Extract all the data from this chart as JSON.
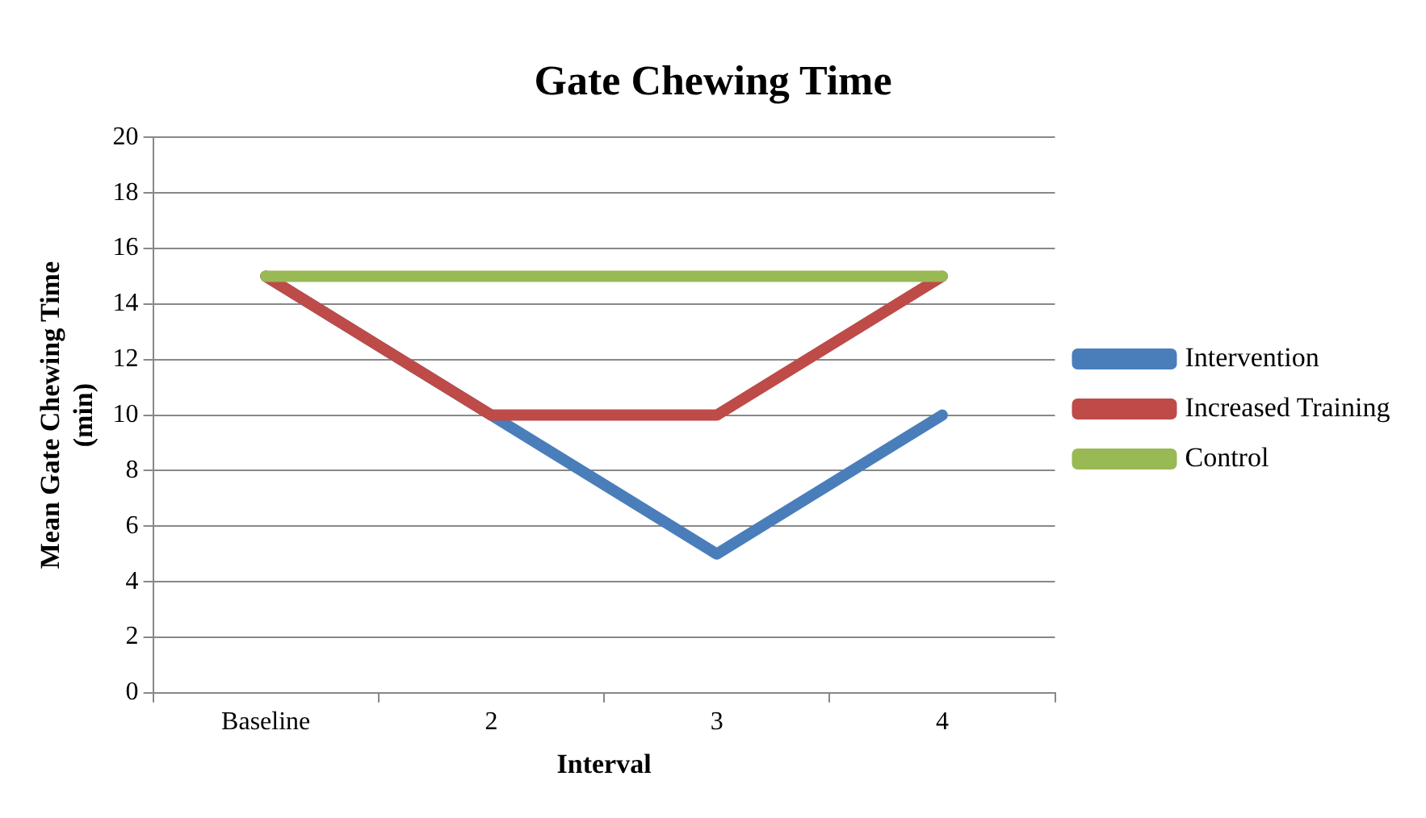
{
  "chart_data": {
    "type": "line",
    "title": "Gate Chewing Time",
    "xlabel": "Interval",
    "ylabel": "Mean Gate Chewing Time (min)",
    "categories": [
      "Baseline",
      "2",
      "3",
      "4"
    ],
    "series": [
      {
        "name": "Intervention",
        "color": "#4a7ebb",
        "values": [
          15,
          10,
          5,
          10
        ]
      },
      {
        "name": "Increased Training",
        "color": "#be4b48",
        "values": [
          15,
          10,
          10,
          15
        ]
      },
      {
        "name": "Control",
        "color": "#98b954",
        "values": [
          15,
          15,
          15,
          15
        ]
      }
    ],
    "ylim": [
      0,
      20
    ],
    "yticks": [
      0,
      2,
      4,
      6,
      8,
      10,
      12,
      14,
      16,
      18,
      20
    ],
    "grid": "y",
    "legend": "right",
    "marker": "none",
    "line_style": "solid"
  }
}
